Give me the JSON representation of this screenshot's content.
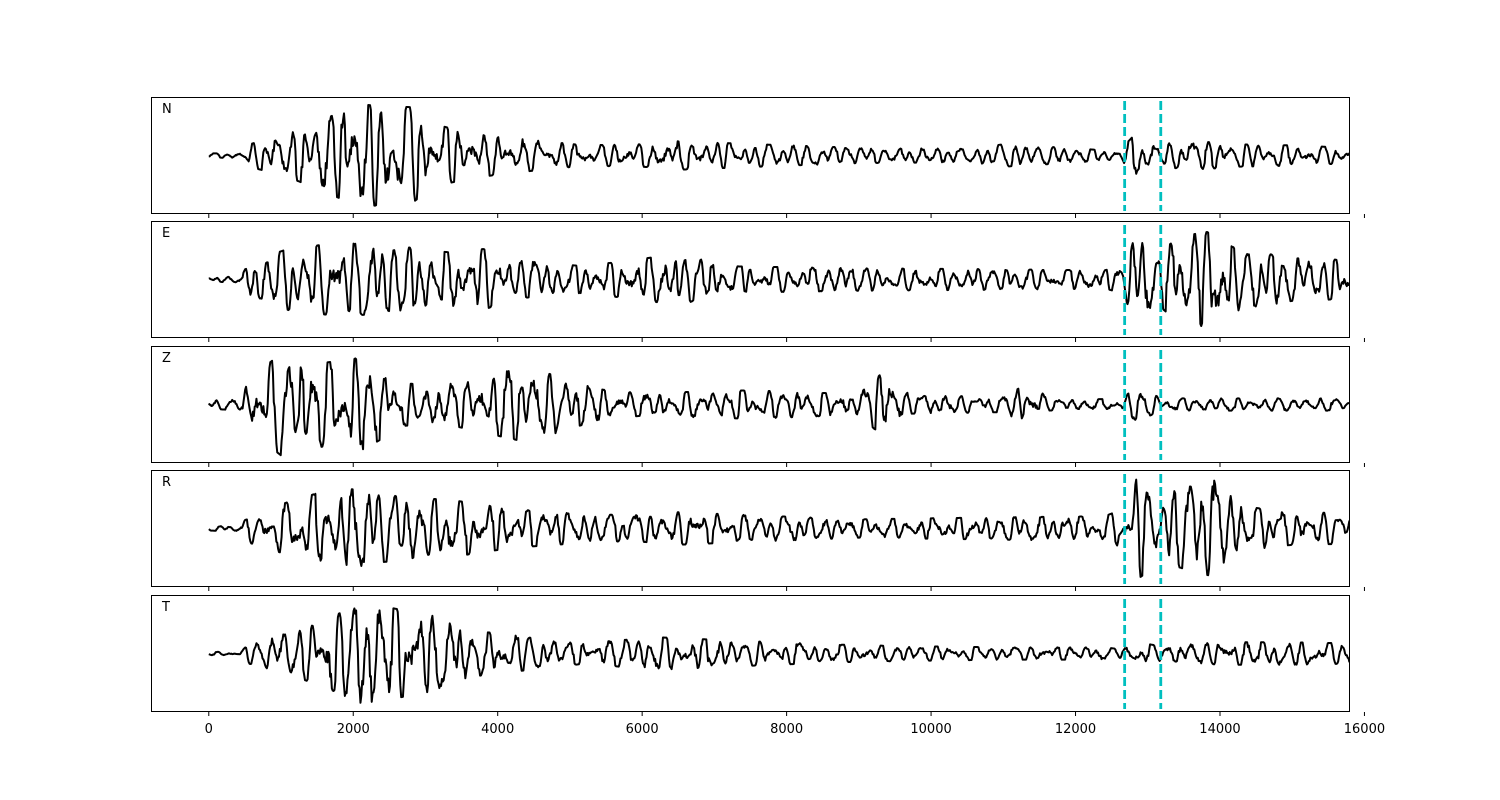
{
  "chart_data": {
    "type": "line",
    "layout": "stacked-panels",
    "sharex": true,
    "xlim": [
      -800,
      15800
    ],
    "x_ticks": [
      0,
      2000,
      4000,
      6000,
      8000,
      10000,
      12000,
      14000,
      16000
    ],
    "x_tick_labels": [
      "0",
      "2000",
      "4000",
      "6000",
      "8000",
      "10000",
      "12000",
      "14000",
      "16000"
    ],
    "xlabel": "",
    "ylabel": "",
    "y_ticks_visible": false,
    "grid": false,
    "legend": "none",
    "n_samples": 15801,
    "marker_lines": {
      "x": [
        12680,
        13180
      ],
      "color": "#00bfbf",
      "style": "dashed"
    },
    "trace_color": "#000000",
    "panels": [
      {
        "label": "N",
        "ylim": [
          -1.15,
          1.15
        ],
        "peak_amplitude": 1.0,
        "envelope": [
          [
            0,
            0.04
          ],
          [
            450,
            0.05
          ],
          [
            560,
            0.22
          ],
          [
            1100,
            0.42
          ],
          [
            1600,
            0.72
          ],
          [
            2100,
            1.0
          ],
          [
            2800,
            0.95
          ],
          [
            3100,
            0.62
          ],
          [
            3600,
            0.45
          ],
          [
            4200,
            0.34
          ],
          [
            5200,
            0.2
          ],
          [
            6000,
            0.22
          ],
          [
            6500,
            0.28
          ],
          [
            7600,
            0.22
          ],
          [
            9000,
            0.15
          ],
          [
            10500,
            0.13
          ],
          [
            11000,
            0.22
          ],
          [
            12000,
            0.14
          ],
          [
            12600,
            0.08
          ],
          [
            12800,
            0.38
          ],
          [
            13100,
            0.22
          ],
          [
            13700,
            0.28
          ],
          [
            14200,
            0.22
          ],
          [
            15000,
            0.2
          ],
          [
            15800,
            0.15
          ]
        ]
      },
      {
        "label": "E",
        "ylim": [
          -1.15,
          1.15
        ],
        "peak_amplitude": 1.0,
        "envelope": [
          [
            0,
            0.04
          ],
          [
            450,
            0.06
          ],
          [
            560,
            0.35
          ],
          [
            1100,
            0.6
          ],
          [
            1800,
            0.72
          ],
          [
            2600,
            0.66
          ],
          [
            3400,
            0.52
          ],
          [
            3800,
            0.6
          ],
          [
            4200,
            0.38
          ],
          [
            5200,
            0.26
          ],
          [
            6500,
            0.5
          ],
          [
            7200,
            0.26
          ],
          [
            9000,
            0.22
          ],
          [
            11000,
            0.2
          ],
          [
            12400,
            0.18
          ],
          [
            12650,
            0.26
          ],
          [
            12850,
            0.9
          ],
          [
            13150,
            0.52
          ],
          [
            13450,
            0.85
          ],
          [
            13900,
            0.95
          ],
          [
            14200,
            0.62
          ],
          [
            15000,
            0.42
          ],
          [
            15800,
            0.38
          ]
        ]
      },
      {
        "label": "Z",
        "ylim": [
          -1.15,
          1.15
        ],
        "peak_amplitude": 1.0,
        "envelope": [
          [
            0,
            0.08
          ],
          [
            450,
            0.12
          ],
          [
            560,
            0.5
          ],
          [
            1000,
            1.0
          ],
          [
            1600,
            0.82
          ],
          [
            2100,
            0.92
          ],
          [
            2700,
            0.42
          ],
          [
            3200,
            0.36
          ],
          [
            4400,
            0.74
          ],
          [
            5400,
            0.3
          ],
          [
            6000,
            0.22
          ],
          [
            7500,
            0.28
          ],
          [
            9000,
            0.2
          ],
          [
            9400,
            0.72
          ],
          [
            9700,
            0.18
          ],
          [
            11000,
            0.15
          ],
          [
            11400,
            0.46
          ],
          [
            11600,
            0.12
          ],
          [
            12600,
            0.1
          ],
          [
            12850,
            0.32
          ],
          [
            13200,
            0.12
          ],
          [
            14000,
            0.12
          ],
          [
            15800,
            0.12
          ]
        ]
      },
      {
        "label": "R",
        "ylim": [
          -1.15,
          1.15
        ],
        "peak_amplitude": 1.0,
        "envelope": [
          [
            0,
            0.04
          ],
          [
            450,
            0.06
          ],
          [
            560,
            0.28
          ],
          [
            1100,
            0.52
          ],
          [
            1800,
            0.82
          ],
          [
            2400,
            0.66
          ],
          [
            3400,
            0.55
          ],
          [
            4200,
            0.38
          ],
          [
            5200,
            0.28
          ],
          [
            6000,
            0.26
          ],
          [
            6500,
            0.32
          ],
          [
            7500,
            0.26
          ],
          [
            9000,
            0.18
          ],
          [
            11000,
            0.22
          ],
          [
            12400,
            0.24
          ],
          [
            12700,
            0.4
          ],
          [
            12850,
            1.0
          ],
          [
            13200,
            0.66
          ],
          [
            13700,
            0.88
          ],
          [
            13950,
            0.95
          ],
          [
            14400,
            0.42
          ],
          [
            15000,
            0.32
          ],
          [
            15800,
            0.3
          ]
        ]
      },
      {
        "label": "T",
        "ylim": [
          -1.15,
          1.15
        ],
        "peak_amplitude": 1.0,
        "envelope": [
          [
            0,
            0.03
          ],
          [
            450,
            0.04
          ],
          [
            560,
            0.2
          ],
          [
            1100,
            0.4
          ],
          [
            1700,
            0.72
          ],
          [
            2150,
            1.0
          ],
          [
            2800,
            0.82
          ],
          [
            3100,
            0.74
          ],
          [
            3600,
            0.46
          ],
          [
            4200,
            0.36
          ],
          [
            5200,
            0.2
          ],
          [
            6200,
            0.32
          ],
          [
            7500,
            0.24
          ],
          [
            9000,
            0.16
          ],
          [
            11000,
            0.12
          ],
          [
            12400,
            0.12
          ],
          [
            12650,
            0.08
          ],
          [
            12850,
            0.22
          ],
          [
            13200,
            0.14
          ],
          [
            14000,
            0.22
          ],
          [
            15000,
            0.22
          ],
          [
            15800,
            0.2
          ]
        ]
      }
    ]
  }
}
